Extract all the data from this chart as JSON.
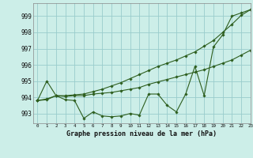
{
  "title": "Graphe pression niveau de la mer (hPa)",
  "bg_color": "#cceee8",
  "grid_color": "#99cccc",
  "line_color": "#2d5e1e",
  "xlim": [
    -0.5,
    23
  ],
  "ylim": [
    992.4,
    999.8
  ],
  "yticks": [
    993,
    994,
    995,
    996,
    997,
    998,
    999
  ],
  "xticks": [
    0,
    1,
    2,
    3,
    4,
    5,
    6,
    7,
    8,
    9,
    10,
    11,
    12,
    13,
    14,
    15,
    16,
    17,
    18,
    19,
    20,
    21,
    22,
    23
  ],
  "series1": [
    993.8,
    995.0,
    994.1,
    993.85,
    993.8,
    992.7,
    993.1,
    992.85,
    992.8,
    992.85,
    993.0,
    992.9,
    994.2,
    994.2,
    993.5,
    993.1,
    994.2,
    995.9,
    994.1,
    997.1,
    997.85,
    999.0,
    999.2,
    999.4
  ],
  "series2": [
    993.8,
    993.85,
    994.1,
    994.05,
    994.1,
    994.1,
    994.2,
    994.25,
    994.3,
    994.4,
    994.5,
    994.6,
    994.8,
    994.95,
    995.1,
    995.25,
    995.4,
    995.55,
    995.7,
    995.9,
    996.1,
    996.3,
    996.6,
    996.9
  ],
  "series3": [
    993.8,
    993.9,
    994.1,
    994.1,
    994.15,
    994.2,
    994.35,
    994.5,
    994.7,
    994.9,
    995.15,
    995.4,
    995.65,
    995.9,
    996.1,
    996.3,
    996.55,
    996.8,
    997.15,
    997.5,
    998.0,
    998.5,
    999.05,
    999.4
  ]
}
